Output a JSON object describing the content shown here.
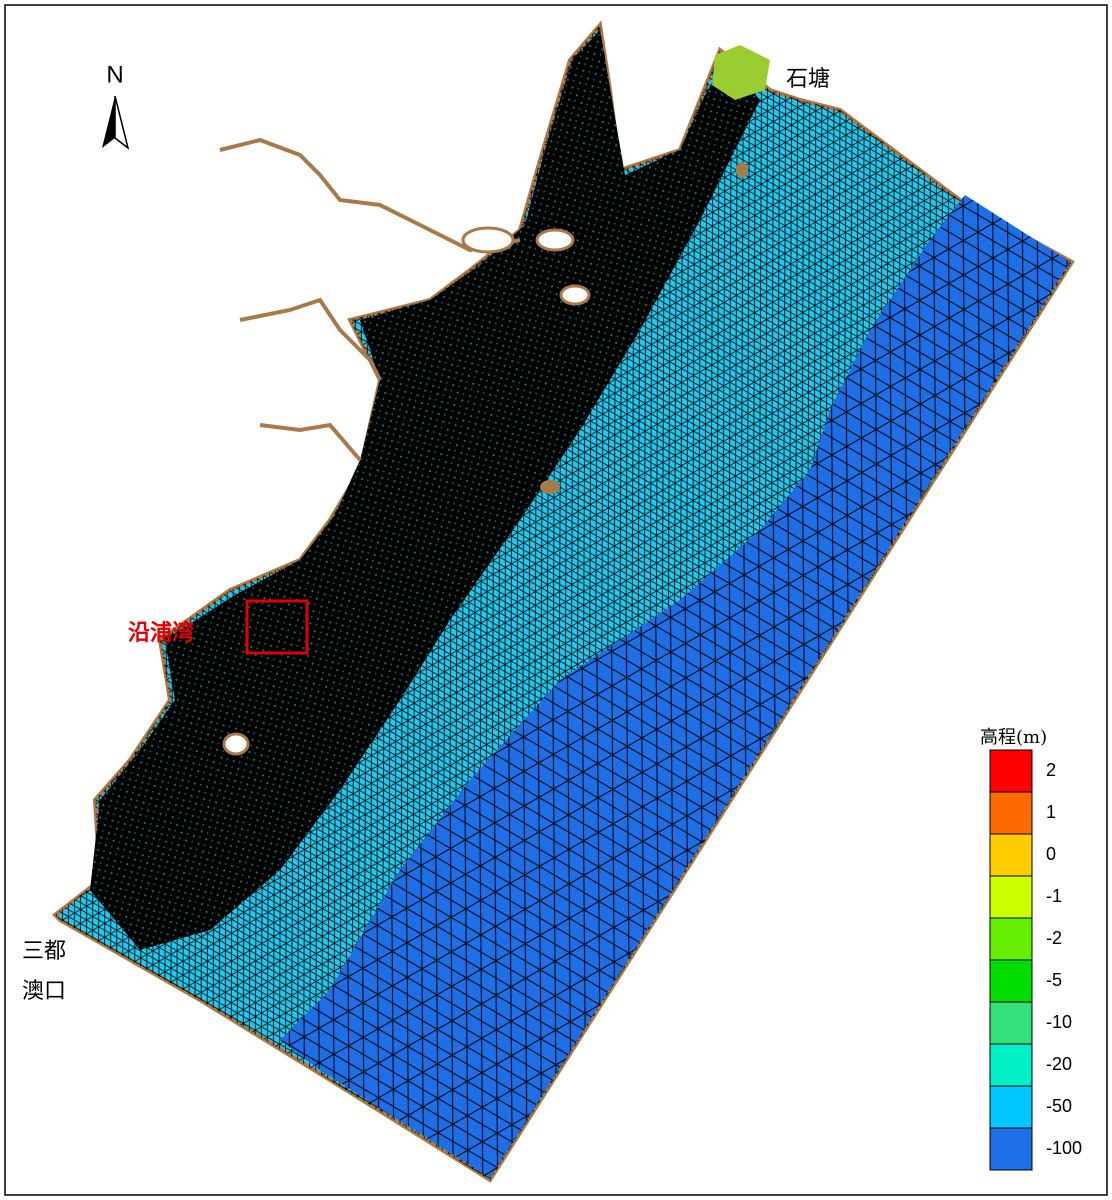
{
  "north": "N",
  "places": {
    "shitang": "石塘",
    "sandu": "三都",
    "aokou": "澳口"
  },
  "highlight": "沿浦湾",
  "legend": {
    "title": "高程(m)",
    "items": [
      {
        "value": 2,
        "color": "#ff0000"
      },
      {
        "value": 1,
        "color": "#ff6a00"
      },
      {
        "value": 0,
        "color": "#ffcc00"
      },
      {
        "value": -1,
        "color": "#ccff00"
      },
      {
        "value": -2,
        "color": "#66ee00"
      },
      {
        "value": -5,
        "color": "#00dd00"
      },
      {
        "value": -10,
        "color": "#33e07a"
      },
      {
        "value": -20,
        "color": "#00f0c8"
      },
      {
        "value": -50,
        "color": "#00c8ff"
      },
      {
        "value": -100,
        "color": "#1e6ee6"
      }
    ]
  }
}
